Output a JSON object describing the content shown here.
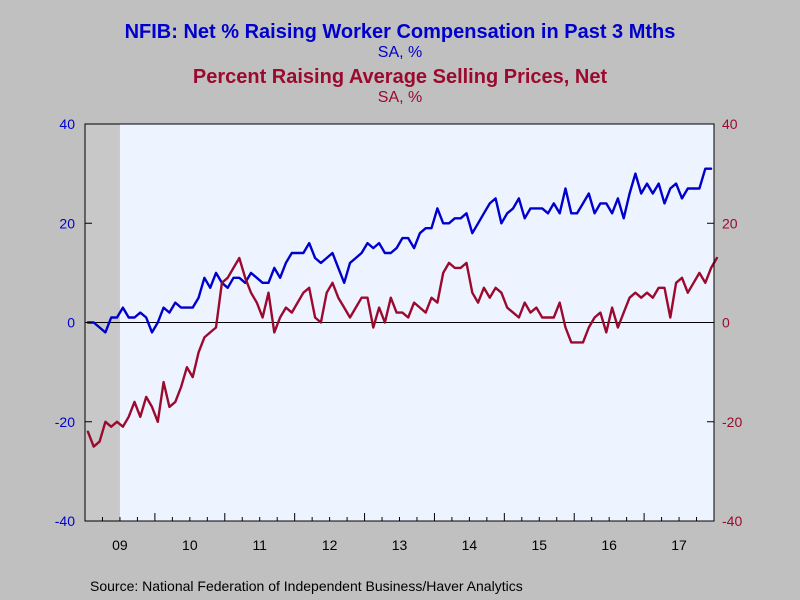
{
  "chart_data": {
    "type": "line",
    "title": "NFIB: Net % Raising Worker Compensation in Past 3 Mths",
    "title_units": "SA, %",
    "subtitle": "Percent Raising Average Selling Prices, Net",
    "subtitle_units": "SA, %",
    "source": "Source:  National Federation of Independent Business/Haver Analytics",
    "x_start": "2009-01",
    "x_end": "2017-12",
    "x_tick_labels": [
      "09",
      "10",
      "11",
      "12",
      "13",
      "14",
      "15",
      "16",
      "17"
    ],
    "ylim_left": [
      -40,
      40
    ],
    "ylim_right": [
      -40,
      40
    ],
    "yticks_left": [
      -40,
      -20,
      0,
      20,
      40
    ],
    "yticks_right": [
      -40,
      -20,
      0,
      20,
      40
    ],
    "recession_shading": [
      "2009-01",
      "2009-06"
    ],
    "grid": false,
    "series": [
      {
        "name": "NFIB: Net % Raising Worker Compensation in Past 3 Mths",
        "axis": "left",
        "color": "#0000cc",
        "start": "2009-01",
        "values": [
          0,
          0,
          -1,
          -2,
          1,
          1,
          3,
          1,
          1,
          2,
          1,
          -2,
          0,
          3,
          2,
          4,
          3,
          3,
          3,
          5,
          9,
          7,
          10,
          8,
          7,
          9,
          9,
          8,
          10,
          9,
          8,
          8,
          11,
          9,
          12,
          14,
          14,
          14,
          16,
          13,
          12,
          13,
          14,
          11,
          8,
          12,
          13,
          14,
          16,
          15,
          16,
          14,
          14,
          15,
          17,
          17,
          15,
          18,
          19,
          19,
          23,
          20,
          20,
          21,
          21,
          22,
          18,
          20,
          22,
          24,
          25,
          20,
          22,
          23,
          25,
          21,
          23,
          23,
          23,
          22,
          24,
          22,
          27,
          22,
          22,
          24,
          26,
          22,
          24,
          24,
          22,
          25,
          21,
          26,
          30,
          26,
          28,
          26,
          28,
          24,
          27,
          28,
          25,
          27,
          27,
          27,
          31,
          31
        ]
      },
      {
        "name": "Percent Raising Average Selling Prices, Net",
        "axis": "right",
        "color": "#9b0a2e",
        "start": "2009-01",
        "values": [
          -22,
          -25,
          -24,
          -20,
          -21,
          -20,
          -21,
          -19,
          -16,
          -19,
          -15,
          -17,
          -20,
          -12,
          -17,
          -16,
          -13,
          -9,
          -11,
          -6,
          -3,
          -2,
          -1,
          8,
          9,
          11,
          13,
          9,
          6,
          4,
          1,
          6,
          -2,
          1,
          3,
          2,
          4,
          6,
          7,
          1,
          0,
          6,
          8,
          5,
          3,
          1,
          3,
          5,
          5,
          -1,
          3,
          0,
          5,
          2,
          2,
          1,
          4,
          3,
          2,
          5,
          4,
          10,
          12,
          11,
          11,
          12,
          6,
          4,
          7,
          5,
          7,
          6,
          3,
          2,
          1,
          4,
          2,
          3,
          1,
          1,
          1,
          4,
          -1,
          -4,
          -4,
          -4,
          -1,
          1,
          2,
          -2,
          3,
          -1,
          2,
          5,
          6,
          5,
          6,
          5,
          7,
          7,
          1,
          8,
          9,
          6,
          8,
          10,
          8,
          11,
          13
        ]
      }
    ]
  }
}
